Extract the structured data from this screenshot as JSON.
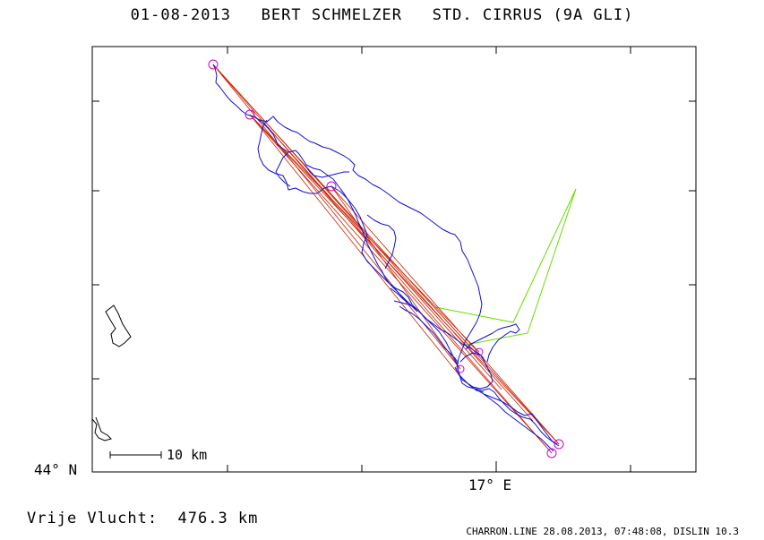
{
  "header": {
    "title": "01-08-2013   BERT SCHMELZER   STD. CIRRUS (9A GLI)"
  },
  "axes": {
    "lat_label": "44° N",
    "lon_label": "17° E"
  },
  "scale": {
    "label": "10 km"
  },
  "summary": {
    "distance_text": "Vrije Vlucht:  476.3 km"
  },
  "footer": {
    "text": "CHARRON.LINE 28.08.2013, 07:48:08, DISLIN 10.3"
  },
  "colors": {
    "track": "#1010d0",
    "task_lines": "#cc2200",
    "triangle": "#66dd00",
    "turnpoints": "#cc00cc",
    "coast": "#000000",
    "frame": "#000000"
  }
}
